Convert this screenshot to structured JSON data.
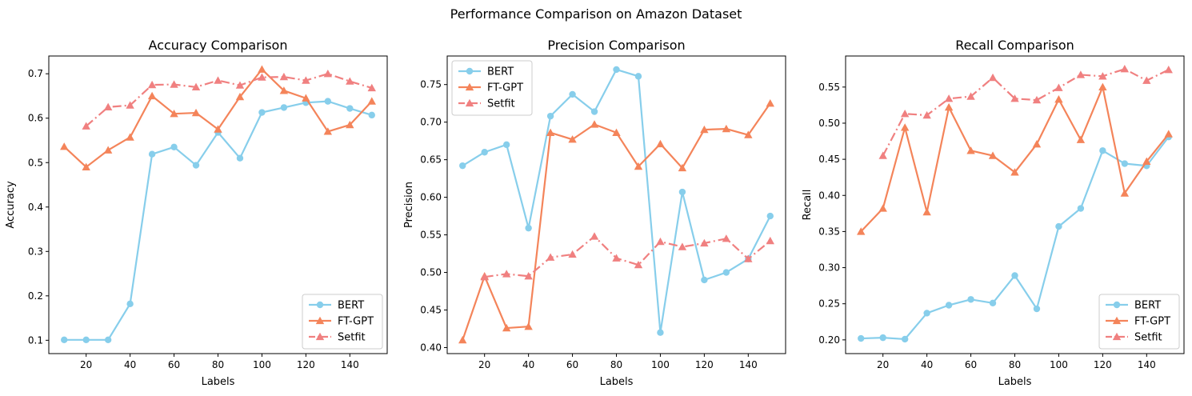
{
  "figure": {
    "suptitle": "Performance Comparison on Amazon Dataset"
  },
  "chart_data": [
    {
      "type": "line",
      "title": "Accuracy Comparison",
      "xlabel": "Labels",
      "ylabel": "Accuracy",
      "xlim": [
        3,
        157
      ],
      "ylim": [
        0.07,
        0.74
      ],
      "xticks": [
        20,
        40,
        60,
        80,
        100,
        120,
        140
      ],
      "yticks": [
        0.1,
        0.2,
        0.3,
        0.4,
        0.5,
        0.6,
        0.7
      ],
      "legend": "lower-right",
      "series": [
        {
          "name": "BERT",
          "color": "#87ceeb",
          "marker": "circle",
          "dash": "solid",
          "x": [
            10,
            20,
            30,
            40,
            50,
            60,
            70,
            80,
            90,
            100,
            110,
            120,
            130,
            140,
            150
          ],
          "y": [
            0.101,
            0.101,
            0.101,
            0.182,
            0.519,
            0.535,
            0.494,
            0.568,
            0.51,
            0.613,
            0.624,
            0.635,
            0.638,
            0.622,
            0.607
          ]
        },
        {
          "name": "FT-GPT",
          "color": "#f4845a",
          "marker": "triangle",
          "dash": "solid",
          "x": [
            10,
            20,
            30,
            40,
            50,
            60,
            70,
            80,
            90,
            100,
            110,
            120,
            130,
            140,
            150
          ],
          "y": [
            0.536,
            0.49,
            0.528,
            0.557,
            0.65,
            0.61,
            0.612,
            0.575,
            0.648,
            0.71,
            0.662,
            0.645,
            0.57,
            0.585,
            0.638
          ]
        },
        {
          "name": "Setfit",
          "color": "#f08080",
          "marker": "triangle",
          "dash": "dashdot",
          "x": [
            20,
            30,
            40,
            50,
            60,
            70,
            80,
            90,
            100,
            110,
            120,
            130,
            140,
            150
          ],
          "y": [
            0.582,
            0.625,
            0.629,
            0.675,
            0.676,
            0.67,
            0.685,
            0.674,
            0.692,
            0.693,
            0.685,
            0.7,
            0.683,
            0.668
          ]
        }
      ]
    },
    {
      "type": "line",
      "title": "Precision Comparison",
      "xlabel": "Labels",
      "ylabel": "Precision",
      "xlim": [
        3,
        157
      ],
      "ylim": [
        0.392,
        0.788
      ],
      "xticks": [
        20,
        40,
        60,
        80,
        100,
        120,
        140
      ],
      "yticks": [
        0.4,
        0.45,
        0.5,
        0.55,
        0.6,
        0.65,
        0.7,
        0.75
      ],
      "legend": "upper-left",
      "series": [
        {
          "name": "BERT",
          "color": "#87ceeb",
          "marker": "circle",
          "dash": "solid",
          "x": [
            10,
            20,
            30,
            40,
            50,
            60,
            70,
            80,
            90,
            100,
            110,
            120,
            130,
            140,
            150
          ],
          "y": [
            0.642,
            0.66,
            0.67,
            0.559,
            0.708,
            0.737,
            0.714,
            0.77,
            0.761,
            0.42,
            0.607,
            0.49,
            0.5,
            0.518,
            0.575
          ]
        },
        {
          "name": "FT-GPT",
          "color": "#f4845a",
          "marker": "triangle",
          "dash": "solid",
          "x": [
            10,
            20,
            30,
            40,
            50,
            60,
            70,
            80,
            90,
            100,
            110,
            120,
            130,
            140,
            150
          ],
          "y": [
            0.41,
            0.495,
            0.426,
            0.428,
            0.686,
            0.677,
            0.697,
            0.686,
            0.641,
            0.671,
            0.639,
            0.69,
            0.691,
            0.683,
            0.725
          ]
        },
        {
          "name": "Setfit",
          "color": "#f08080",
          "marker": "triangle",
          "dash": "dashdot",
          "x": [
            20,
            30,
            40,
            50,
            60,
            70,
            80,
            90,
            100,
            110,
            120,
            130,
            140,
            150
          ],
          "y": [
            0.494,
            0.498,
            0.495,
            0.52,
            0.524,
            0.548,
            0.519,
            0.51,
            0.541,
            0.534,
            0.539,
            0.545,
            0.518,
            0.542
          ]
        }
      ]
    },
    {
      "type": "line",
      "title": "Recall Comparison",
      "xlabel": "Labels",
      "ylabel": "Recall",
      "xlim": [
        3,
        157
      ],
      "ylim": [
        0.181,
        0.593
      ],
      "xticks": [
        20,
        40,
        60,
        80,
        100,
        120,
        140
      ],
      "yticks": [
        0.2,
        0.25,
        0.3,
        0.35,
        0.4,
        0.45,
        0.5,
        0.55
      ],
      "legend": "lower-right",
      "series": [
        {
          "name": "BERT",
          "color": "#87ceeb",
          "marker": "circle",
          "dash": "solid",
          "x": [
            10,
            20,
            30,
            40,
            50,
            60,
            70,
            80,
            90,
            100,
            110,
            120,
            130,
            140,
            150
          ],
          "y": [
            0.202,
            0.203,
            0.201,
            0.237,
            0.248,
            0.256,
            0.251,
            0.289,
            0.243,
            0.357,
            0.382,
            0.462,
            0.444,
            0.441,
            0.481
          ]
        },
        {
          "name": "FT-GPT",
          "color": "#f4845a",
          "marker": "triangle",
          "dash": "solid",
          "x": [
            10,
            20,
            30,
            40,
            50,
            60,
            70,
            80,
            90,
            100,
            110,
            120,
            130,
            140,
            150
          ],
          "y": [
            0.35,
            0.382,
            0.494,
            0.377,
            0.522,
            0.462,
            0.455,
            0.432,
            0.471,
            0.533,
            0.477,
            0.55,
            0.403,
            0.447,
            0.485
          ]
        },
        {
          "name": "Setfit",
          "color": "#f08080",
          "marker": "triangle",
          "dash": "dashdot",
          "x": [
            20,
            30,
            40,
            50,
            60,
            70,
            80,
            90,
            100,
            110,
            120,
            130,
            140,
            150
          ],
          "y": [
            0.455,
            0.513,
            0.511,
            0.534,
            0.537,
            0.563,
            0.534,
            0.532,
            0.549,
            0.567,
            0.565,
            0.575,
            0.559,
            0.574
          ]
        }
      ]
    }
  ]
}
